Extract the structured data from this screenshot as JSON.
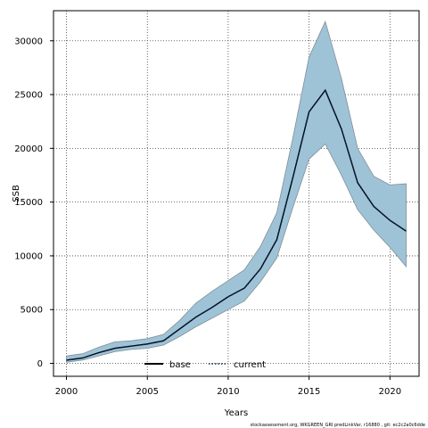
{
  "chart_data": {
    "type": "area",
    "xlabel": "Years",
    "ylabel": "SSB",
    "xlim": [
      1999.2,
      2021.8
    ],
    "ylim": [
      -1200,
      32800
    ],
    "x_ticks": [
      2000,
      2005,
      2010,
      2015,
      2020
    ],
    "y_ticks": [
      0,
      5000,
      10000,
      15000,
      20000,
      25000,
      30000
    ],
    "grid": true,
    "legend_position": "bottom-center",
    "footnote": "stockassessment.org, WKGREEN_GRI predLinkVar, r16880 , git: ec2c2a0c6dde",
    "x": [
      2000,
      2001,
      2002,
      2003,
      2004,
      2005,
      2006,
      2007,
      2008,
      2009,
      2010,
      2011,
      2012,
      2013,
      2014,
      2015,
      2016,
      2017,
      2018,
      2019,
      2020,
      2021
    ],
    "series": [
      {
        "name": "base",
        "style": "solid",
        "color": "#000000",
        "values": [
          300,
          500,
          1000,
          1400,
          1600,
          1800,
          2100,
          3200,
          4300,
          5200,
          6200,
          7000,
          8800,
          11500,
          17300,
          23400,
          25400,
          21800,
          16800,
          14600,
          13300,
          12300
        ]
      },
      {
        "name": "current",
        "style": "dotted",
        "color": "#0b2a5a",
        "values": [
          300,
          500,
          1000,
          1400,
          1600,
          1800,
          2100,
          3200,
          4300,
          5200,
          6200,
          7000,
          8800,
          11500,
          17300,
          23400,
          25400,
          21800,
          16800,
          14600,
          13300,
          12300
        ],
        "upper": [
          700,
          900,
          1500,
          2000,
          2100,
          2300,
          2700,
          4000,
          5600,
          6700,
          7700,
          8700,
          10900,
          14000,
          21000,
          28500,
          31800,
          26500,
          20000,
          17400,
          16600,
          16700
        ],
        "lower": [
          100,
          300,
          700,
          1100,
          1300,
          1400,
          1700,
          2500,
          3400,
          4200,
          5000,
          5800,
          7600,
          9800,
          14500,
          19000,
          20400,
          17500,
          14300,
          12400,
          10800,
          9000
        ],
        "band_color": "#9fc3d6"
      }
    ]
  }
}
